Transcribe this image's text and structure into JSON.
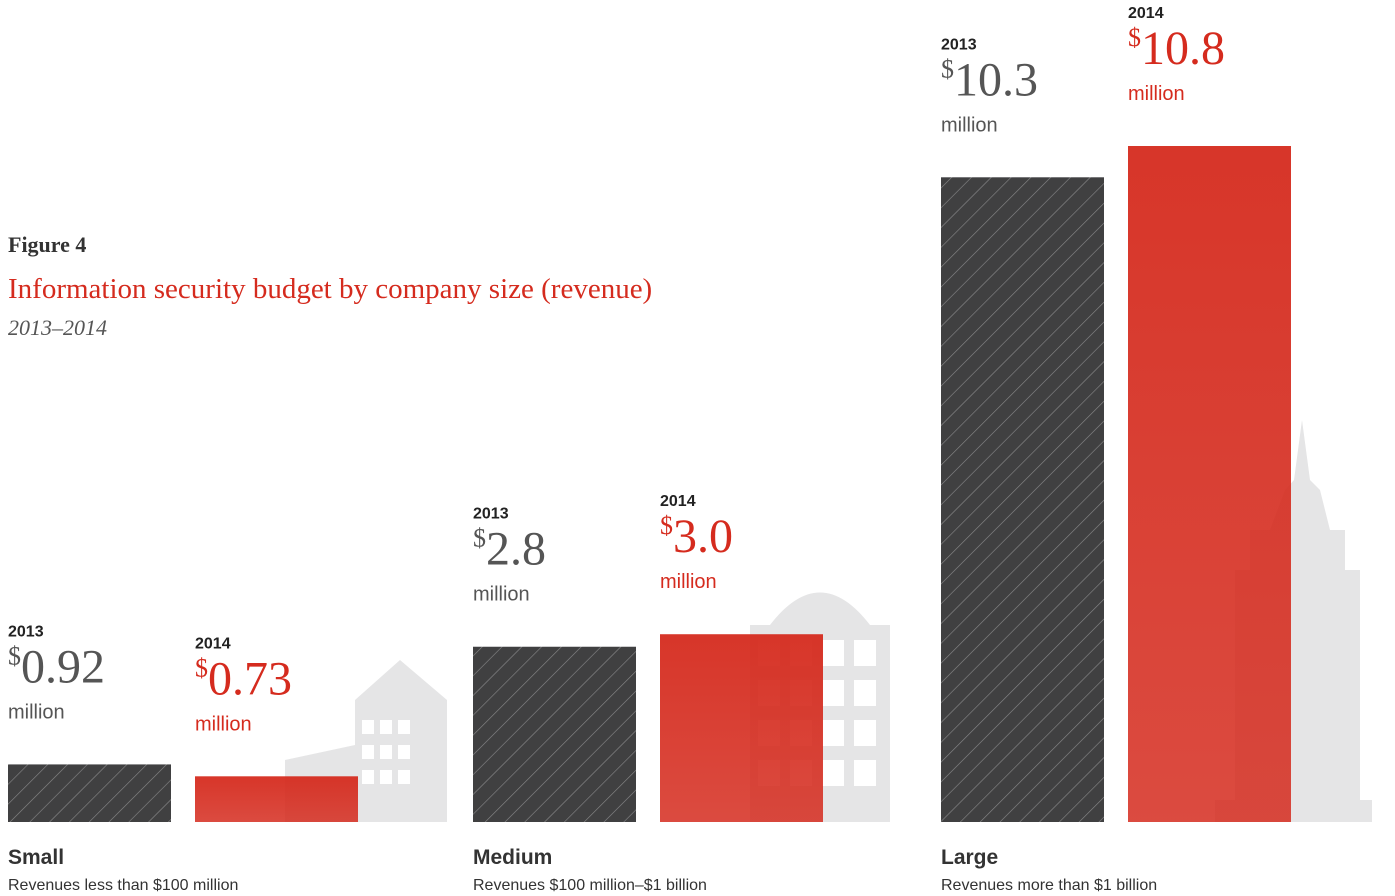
{
  "chart_data": {
    "type": "bar",
    "figure_label": "Figure 4",
    "title": "Information security budget by company size (revenue)",
    "subtitle": "2013–2014",
    "categories": [
      "Small",
      "Medium",
      "Large"
    ],
    "category_notes": [
      "Revenues less than $100 million",
      "Revenues $100 million–$1 billion",
      "Revenues more than $1 billion"
    ],
    "currency_symbol": "$",
    "unit_label": "million",
    "series": [
      {
        "name": "2013",
        "color": "#404041",
        "values": [
          0.92,
          2.8,
          10.3
        ],
        "value_labels": [
          "0.92",
          "2.8",
          "10.3"
        ]
      },
      {
        "name": "2014",
        "color": "#d52b1e",
        "values": [
          0.73,
          3.0,
          10.8
        ],
        "value_labels": [
          "0.73",
          "3.0",
          "10.8"
        ]
      }
    ]
  }
}
